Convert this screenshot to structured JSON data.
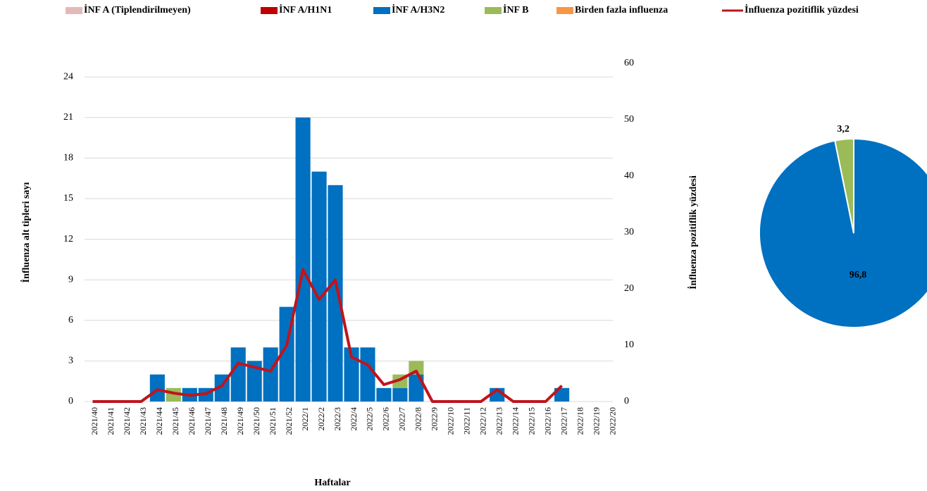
{
  "chart_data": [
    {
      "type": "bar",
      "stacked": true,
      "x_label": "Haftalar",
      "y_label": "İnfluenza alt tipleri sayı",
      "y2_label": "İnfluenza pozitiflik yüzdesi",
      "categories": [
        "2021/40",
        "2021/41",
        "2021/42",
        "2021/43",
        "2021/44",
        "2021/45",
        "2021/46",
        "2021/47",
        "2021/48",
        "2021/49",
        "2021/50",
        "2021/51",
        "2021/52",
        "2022/1",
        "2022/2",
        "2022/3",
        "2022/4",
        "2022/5",
        "2022/6",
        "2022/7",
        "2022/8",
        "2022/9",
        "2022/10",
        "2022/11",
        "2022/12",
        "2022/13",
        "2022/14",
        "2022/15",
        "2022/16",
        "2022/17",
        "2022/18",
        "2022/19",
        "2022/20"
      ],
      "series": [
        {
          "name": "İNF A (Tiplendirilmeyen)",
          "color": "#e6b9b8",
          "values": [
            0,
            0,
            0,
            0,
            0,
            0,
            0,
            0,
            0,
            0,
            0,
            0,
            0,
            0,
            0,
            0,
            0,
            0,
            0,
            0,
            0,
            0,
            0,
            0,
            0,
            0,
            0,
            0,
            0,
            0,
            0,
            0,
            0
          ]
        },
        {
          "name": "İNF A/H1N1",
          "color": "#c00000",
          "values": [
            0,
            0,
            0,
            0,
            0,
            0,
            0,
            0,
            0,
            0,
            0,
            0,
            0,
            0,
            0,
            0,
            0,
            0,
            0,
            0,
            0,
            0,
            0,
            0,
            0,
            0,
            0,
            0,
            0,
            0,
            0,
            0,
            0
          ]
        },
        {
          "name": "İNF A/H3N2",
          "color": "#0070c0",
          "values": [
            0,
            0,
            0,
            0,
            2,
            0,
            1,
            1,
            2,
            4,
            3,
            4,
            7,
            21,
            17,
            16,
            4,
            4,
            1,
            1,
            2,
            0,
            0,
            0,
            0,
            1,
            0,
            0,
            0,
            1,
            0,
            0,
            0
          ]
        },
        {
          "name": "İNF B",
          "color": "#9bbb59",
          "values": [
            0,
            0,
            0,
            0,
            0,
            1,
            0,
            0,
            0,
            0,
            0,
            0,
            0,
            0,
            0,
            0,
            0,
            0,
            0,
            1,
            1,
            0,
            0,
            0,
            0,
            0,
            0,
            0,
            0,
            0,
            0,
            0,
            0
          ]
        },
        {
          "name": "Birden fazla influenza",
          "color": "#f79646",
          "values": [
            0,
            0,
            0,
            0,
            0,
            0,
            0,
            0,
            0,
            0,
            0,
            0,
            0,
            0,
            0,
            0,
            0,
            0,
            0,
            0,
            0,
            0,
            0,
            0,
            0,
            0,
            0,
            0,
            0,
            0,
            0,
            0,
            0
          ]
        },
        {
          "name": "İnfluenza pozitiflik yüzdesi",
          "color": "#c0141c",
          "type": "line",
          "axis": "y2",
          "values": [
            0,
            0,
            0,
            0,
            2.1,
            1.5,
            1.1,
            1.4,
            2.8,
            6.8,
            6.1,
            5.4,
            10,
            23.4,
            18.1,
            21.6,
            7.9,
            6.5,
            3,
            3.9,
            5.4,
            0,
            0,
            0,
            0,
            2.1,
            0,
            0,
            0,
            2.8,
            null,
            null,
            null
          ]
        }
      ],
      "ylim": [
        0,
        25
      ],
      "yticks": [
        0,
        3,
        6,
        9,
        12,
        15,
        18,
        21,
        24
      ],
      "y2lim": [
        0,
        60
      ],
      "y2ticks": [
        0,
        10,
        20,
        30,
        40,
        50,
        60
      ],
      "grid": true,
      "legend": "top"
    },
    {
      "type": "pie",
      "values": [
        96.8,
        3.2
      ],
      "value_labels": [
        "96,8",
        "3,2"
      ],
      "colors": [
        "#0070c0",
        "#9bbb59"
      ]
    }
  ]
}
